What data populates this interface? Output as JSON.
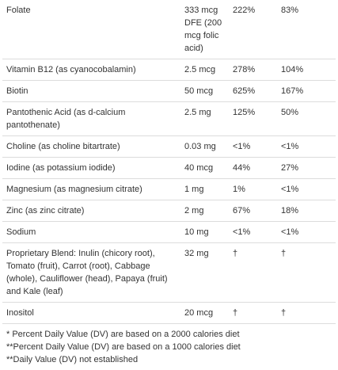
{
  "table": {
    "rows": [
      [
        "Folate",
        "333 mcg DFE (200 mcg folic acid)",
        "222%",
        "83%"
      ],
      [
        "Vitamin B12 (as cyanocobalamin)",
        "2.5 mcg",
        "278%",
        "104%"
      ],
      [
        "Biotin",
        "50 mcg",
        "625%",
        "167%"
      ],
      [
        "Pantothenic Acid (as d-calcium pantothenate)",
        "2.5 mg",
        "125%",
        "50%"
      ],
      [
        "Choline (as choline bitartrate)",
        "0.03 mg",
        "<1%",
        "<1%"
      ],
      [
        "Iodine (as potassium iodide)",
        "40 mcg",
        "44%",
        "27%"
      ],
      [
        "Magnesium (as magnesium citrate)",
        "1 mg",
        "1%",
        "<1%"
      ],
      [
        "Zinc (as zinc citrate)",
        "2 mg",
        "67%",
        "18%"
      ],
      [
        "Sodium",
        "10 mg",
        "<1%",
        "<1%"
      ],
      [
        "Proprietary Blend: Inulin (chicory root), Tomato (fruit), Carrot (root), Cabbage (whole), Cauliflower (head), Papaya (fruit) and Kale (leaf)",
        "32 mg",
        "†",
        "†"
      ],
      [
        "Inositol",
        "20 mcg",
        "†",
        "†"
      ]
    ]
  },
  "footnotes": [
    "* Percent Daily Value (DV) are based on a 2000 calories diet",
    "**Percent Daily Value (DV) are based on a 1000 calories diet",
    "**Daily Value (DV) not established"
  ]
}
